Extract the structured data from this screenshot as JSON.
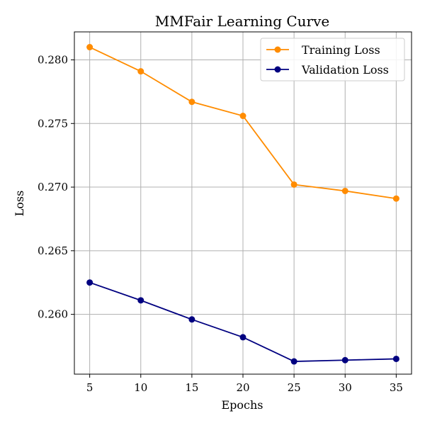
{
  "chart_data": {
    "type": "line",
    "title": "MMFair Learning Curve",
    "xlabel": "Epochs",
    "ylabel": "Loss",
    "x": [
      5,
      10,
      15,
      20,
      25,
      30,
      35
    ],
    "xlim": [
      3.5,
      36.5
    ],
    "ylim": [
      0.2553,
      0.2822
    ],
    "xticks": [
      5,
      10,
      15,
      20,
      25,
      30,
      35
    ],
    "yticks": [
      0.26,
      0.265,
      0.27,
      0.275,
      0.28
    ],
    "ytick_labels": [
      "0.260",
      "0.265",
      "0.270",
      "0.275",
      "0.280"
    ],
    "grid": true,
    "legend_position": "top-right",
    "series": [
      {
        "name": "Training Loss",
        "color": "#ff8c00",
        "marker": "circle",
        "values": [
          0.281,
          0.2791,
          0.2767,
          0.2756,
          0.2702,
          0.2697,
          0.2691
        ]
      },
      {
        "name": "Validation Loss",
        "color": "#000080",
        "marker": "circle",
        "values": [
          0.2625,
          0.2611,
          0.2596,
          0.2582,
          0.2563,
          0.2564,
          0.2565
        ]
      }
    ]
  }
}
